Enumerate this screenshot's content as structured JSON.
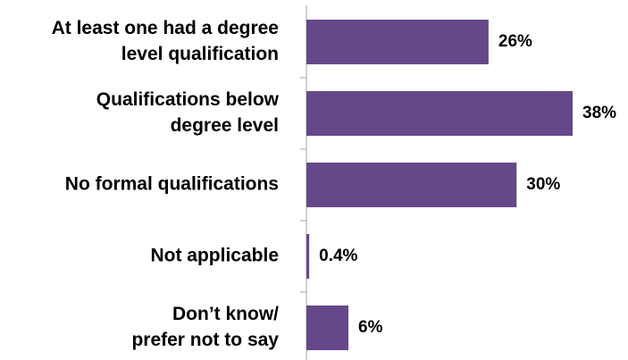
{
  "chart_data": {
    "type": "bar",
    "orientation": "horizontal",
    "categories": [
      [
        "At least one had a degree",
        "level qualification"
      ],
      [
        "Qualifications below",
        "degree level"
      ],
      [
        "No formal qualifications"
      ],
      [
        "Not applicable"
      ],
      [
        "Don’t know/",
        "prefer not to say"
      ]
    ],
    "values": [
      26,
      38,
      30,
      0.4,
      6
    ],
    "value_labels": [
      "26%",
      "38%",
      "30%",
      "0.4%",
      "6%"
    ],
    "color": "#65488a"
  }
}
